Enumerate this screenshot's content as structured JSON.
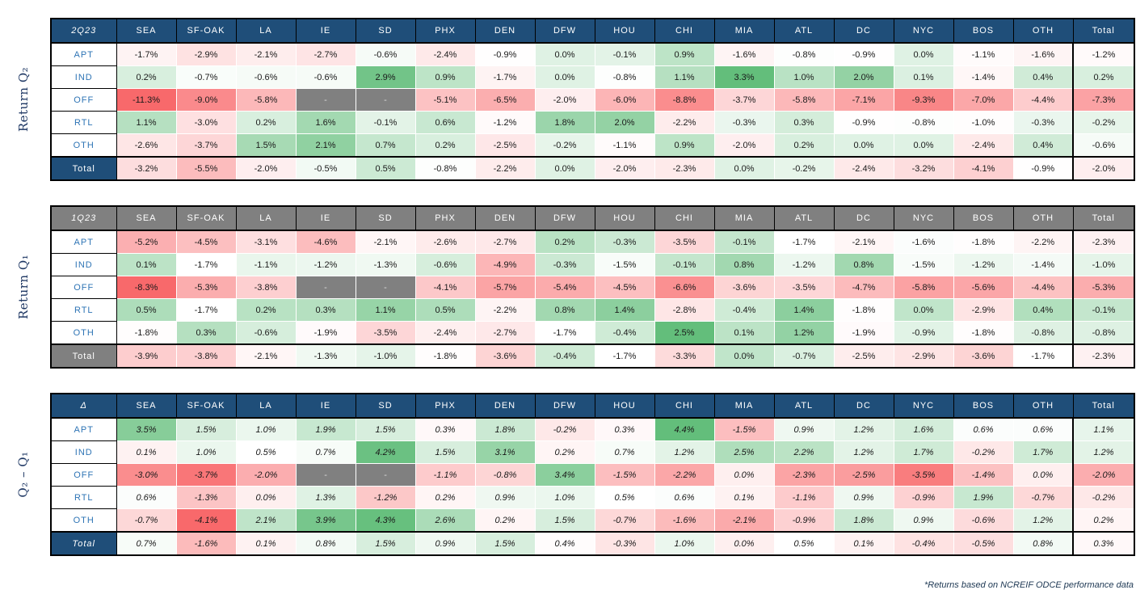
{
  "footnote": "*Returns based on NCREIF ODCE performance data",
  "colors": {
    "header_navy": "#1F4E79",
    "header_gray": "#808080",
    "row_label_text": "#2E74B5",
    "scale_min_red": "#F8696B",
    "scale_mid_white": "#FFFFFF",
    "scale_max_green": "#63BE7B",
    "missing_bg": "#808080"
  },
  "chart_data": [
    {
      "type": "heatmap",
      "axis_label": "Return Q₂",
      "corner_label": "2Q23",
      "header_style": "navy",
      "italic_values": false,
      "columns": [
        "SEA",
        "SF-OAK",
        "LA",
        "IE",
        "SD",
        "PHX",
        "DEN",
        "DFW",
        "HOU",
        "CHI",
        "MIA",
        "ATL",
        "DC",
        "NYC",
        "BOS",
        "OTH",
        "Total"
      ],
      "value_unit": "%",
      "missing_display": "-",
      "rows": [
        {
          "label": "APT",
          "values": [
            -1.7,
            -2.9,
            -2.1,
            -2.7,
            -0.6,
            -2.4,
            -0.9,
            0.0,
            -0.1,
            0.9,
            -1.6,
            -0.8,
            -0.9,
            0.0,
            -1.1,
            -1.6,
            -1.2
          ]
        },
        {
          "label": "IND",
          "values": [
            0.2,
            -0.7,
            -0.6,
            -0.6,
            2.9,
            0.9,
            -1.7,
            0.0,
            -0.8,
            1.1,
            3.3,
            1.0,
            2.0,
            0.1,
            -1.4,
            0.4,
            0.2
          ]
        },
        {
          "label": "OFF",
          "values": [
            -11.3,
            -9.0,
            -5.8,
            null,
            null,
            -5.1,
            -6.5,
            -2.0,
            -6.0,
            -8.8,
            -3.7,
            -5.8,
            -7.1,
            -9.3,
            -7.0,
            -4.4,
            -7.3
          ]
        },
        {
          "label": "RTL",
          "values": [
            1.1,
            -3.0,
            0.2,
            1.6,
            -0.1,
            0.6,
            -1.2,
            1.8,
            2.0,
            -2.2,
            -0.3,
            0.3,
            -0.9,
            -0.8,
            -1.0,
            -0.3,
            -0.2
          ]
        },
        {
          "label": "OTH",
          "values": [
            -2.6,
            -3.7,
            1.5,
            2.1,
            0.7,
            0.2,
            -2.5,
            -0.2,
            -1.1,
            0.9,
            -2.0,
            0.2,
            0.0,
            0.0,
            -2.4,
            0.4,
            -0.6
          ]
        },
        {
          "label": "Total",
          "values": [
            -3.2,
            -5.5,
            -2.0,
            -0.5,
            0.5,
            -0.8,
            -2.2,
            0.0,
            -2.0,
            -2.3,
            0.0,
            -0.2,
            -2.4,
            -3.2,
            -4.1,
            -0.9,
            -2.0
          ]
        }
      ]
    },
    {
      "type": "heatmap",
      "axis_label": "Return Q₁",
      "corner_label": "1Q23",
      "header_style": "gray",
      "italic_values": false,
      "columns": [
        "SEA",
        "SF-OAK",
        "LA",
        "IE",
        "SD",
        "PHX",
        "DEN",
        "DFW",
        "HOU",
        "CHI",
        "MIA",
        "ATL",
        "DC",
        "NYC",
        "BOS",
        "OTH",
        "Total"
      ],
      "value_unit": "%",
      "missing_display": "-",
      "rows": [
        {
          "label": "APT",
          "values": [
            -5.2,
            -4.5,
            -3.1,
            -4.6,
            -2.1,
            -2.6,
            -2.7,
            0.2,
            -0.3,
            -3.5,
            -0.1,
            -1.7,
            -2.1,
            -1.6,
            -1.8,
            -2.2,
            -2.3
          ]
        },
        {
          "label": "IND",
          "values": [
            0.1,
            -1.7,
            -1.1,
            -1.2,
            -1.3,
            -0.6,
            -4.9,
            -0.3,
            -1.5,
            -0.1,
            0.8,
            -1.2,
            0.8,
            -1.5,
            -1.2,
            -1.4,
            -1.0
          ]
        },
        {
          "label": "OFF",
          "values": [
            -8.3,
            -5.3,
            -3.8,
            null,
            null,
            -4.1,
            -5.7,
            -5.4,
            -4.5,
            -6.6,
            -3.6,
            -3.5,
            -4.7,
            -5.8,
            -5.6,
            -4.4,
            -5.3
          ]
        },
        {
          "label": "RTL",
          "values": [
            0.5,
            -1.7,
            0.2,
            0.3,
            1.1,
            0.5,
            -2.2,
            0.8,
            1.4,
            -2.8,
            -0.4,
            1.4,
            -1.8,
            0.0,
            -2.9,
            0.4,
            -0.1
          ]
        },
        {
          "label": "OTH",
          "values": [
            -1.8,
            0.3,
            -0.6,
            -1.9,
            -3.5,
            -2.4,
            -2.7,
            -1.7,
            -0.4,
            2.5,
            0.1,
            1.2,
            -1.9,
            -0.9,
            -1.8,
            -0.8,
            -0.8
          ]
        },
        {
          "label": "Total",
          "values": [
            -3.9,
            -3.8,
            -2.1,
            -1.3,
            -1.0,
            -1.8,
            -3.6,
            -0.4,
            -1.7,
            -3.3,
            0.0,
            -0.7,
            -2.5,
            -2.9,
            -3.6,
            -1.7,
            -2.3
          ]
        }
      ]
    },
    {
      "type": "heatmap",
      "axis_label": "Q₂ – Q₁",
      "corner_label": "Δ",
      "header_style": "navy",
      "italic_values": true,
      "columns": [
        "SEA",
        "SF-OAK",
        "LA",
        "IE",
        "SD",
        "PHX",
        "DEN",
        "DFW",
        "HOU",
        "CHI",
        "MIA",
        "ATL",
        "DC",
        "NYC",
        "BOS",
        "OTH",
        "Total"
      ],
      "value_unit": "%",
      "missing_display": "-",
      "rows": [
        {
          "label": "APT",
          "values": [
            3.5,
            1.5,
            1.0,
            1.9,
            1.5,
            0.3,
            1.8,
            -0.2,
            0.3,
            4.4,
            -1.5,
            0.9,
            1.2,
            1.6,
            0.6,
            0.6,
            1.1
          ]
        },
        {
          "label": "IND",
          "values": [
            0.1,
            1.0,
            0.5,
            0.7,
            4.2,
            1.5,
            3.1,
            0.2,
            0.7,
            1.2,
            2.5,
            2.2,
            1.2,
            1.7,
            -0.2,
            1.7,
            1.2
          ]
        },
        {
          "label": "OFF",
          "values": [
            -3.0,
            -3.7,
            -2.0,
            null,
            null,
            -1.1,
            -0.8,
            3.4,
            -1.5,
            -2.2,
            0.0,
            -2.3,
            -2.5,
            -3.5,
            -1.4,
            0.0,
            -2.0
          ]
        },
        {
          "label": "RTL",
          "values": [
            0.6,
            -1.3,
            0.0,
            1.3,
            -1.2,
            0.2,
            0.9,
            1.0,
            0.5,
            0.6,
            0.1,
            -1.1,
            0.9,
            -0.9,
            1.9,
            -0.7,
            -0.2
          ]
        },
        {
          "label": "OTH",
          "values": [
            -0.7,
            -4.1,
            2.1,
            3.9,
            4.3,
            2.6,
            0.2,
            1.5,
            -0.7,
            -1.6,
            -2.1,
            -0.9,
            1.8,
            0.9,
            -0.6,
            1.2,
            0.2
          ]
        },
        {
          "label": "Total",
          "values": [
            0.7,
            -1.6,
            0.1,
            0.8,
            1.5,
            0.9,
            1.5,
            0.4,
            -0.3,
            1.0,
            0.0,
            0.5,
            0.1,
            -0.4,
            -0.5,
            0.8,
            0.3
          ]
        }
      ]
    }
  ]
}
